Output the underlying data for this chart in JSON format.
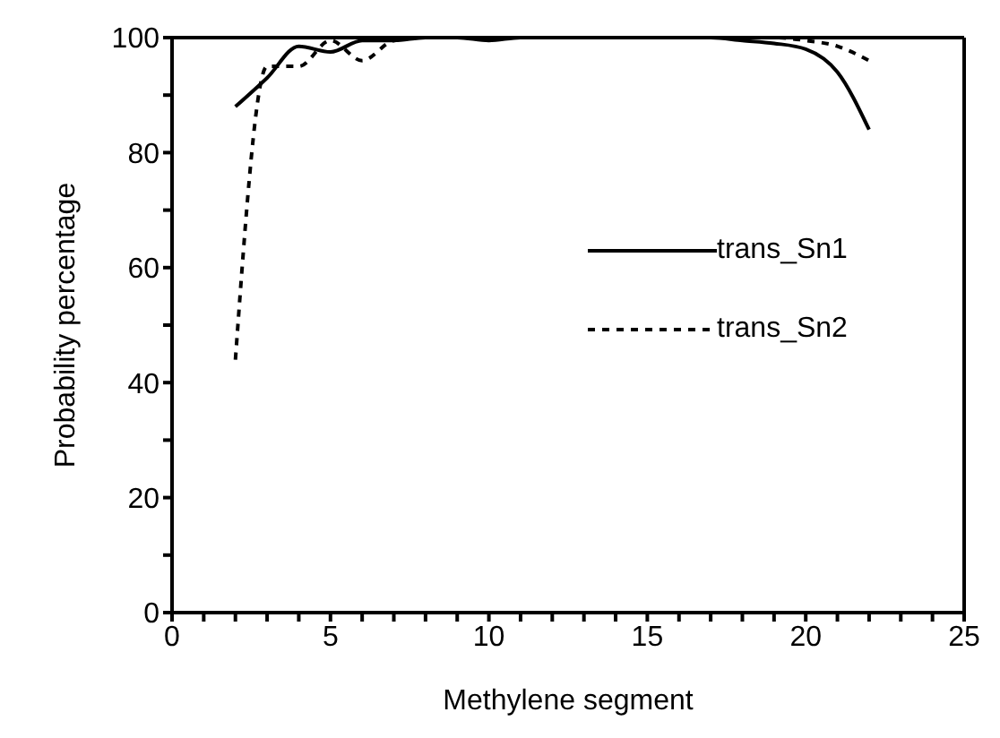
{
  "chart_data": {
    "type": "line",
    "xlabel": "Methylene segment",
    "ylabel": "Probability percentage",
    "x": [
      2,
      3,
      4,
      5,
      6,
      7,
      8,
      9,
      10,
      11,
      12,
      13,
      14,
      15,
      16,
      17,
      18,
      19,
      20,
      21,
      22
    ],
    "series": [
      {
        "name": "trans_Sn1",
        "color": "#000000",
        "line_style": "solid",
        "values": [
          88,
          93,
          98.5,
          97.5,
          99.5,
          99.5,
          100,
          100,
          99.5,
          100,
          100,
          100,
          100,
          100,
          100,
          100,
          99.5,
          99,
          98,
          94,
          84
        ]
      },
      {
        "name": "trans_Sn2",
        "color": "#000000",
        "line_style": "dashed",
        "values": [
          44,
          95,
          95,
          99.5,
          96,
          99.5,
          100,
          100,
          100,
          100,
          100,
          100,
          100,
          100,
          100,
          100,
          100,
          100,
          99.5,
          98.5,
          96
        ]
      }
    ],
    "xlim": [
      0,
      25
    ],
    "xticks": [
      0,
      {
        "value": 1,
        "label": null
      },
      {
        "value": 2,
        "label": null
      },
      {
        "value": 3,
        "label": null
      },
      {
        "value": 4,
        "label": null
      },
      5,
      {
        "value": 6,
        "label": null
      },
      {
        "value": 7,
        "label": null
      },
      {
        "value": 8,
        "label": null
      },
      {
        "value": 9,
        "label": null
      },
      10,
      {
        "value": 11,
        "label": null
      },
      {
        "value": 12,
        "label": null
      },
      {
        "value": 13,
        "label": null
      },
      {
        "value": 14,
        "label": null
      },
      15,
      {
        "value": 16,
        "label": null
      },
      {
        "value": 17,
        "label": null
      },
      {
        "value": 18,
        "label": null
      },
      {
        "value": 19,
        "label": null
      },
      20,
      {
        "value": 21,
        "label": null
      },
      {
        "value": 22,
        "label": null
      },
      {
        "value": 23,
        "label": null
      },
      {
        "value": 24,
        "label": null
      },
      25
    ],
    "ylim": [
      0,
      100
    ],
    "yticks": [
      0,
      {
        "value": 10,
        "label": null
      },
      20,
      {
        "value": 30,
        "label": null
      },
      40,
      {
        "value": 50,
        "label": null
      },
      60,
      {
        "value": 70,
        "label": null
      },
      80,
      {
        "value": 90,
        "label": null
      },
      100
    ],
    "grid": false,
    "legend": "right",
    "marker": "none"
  }
}
